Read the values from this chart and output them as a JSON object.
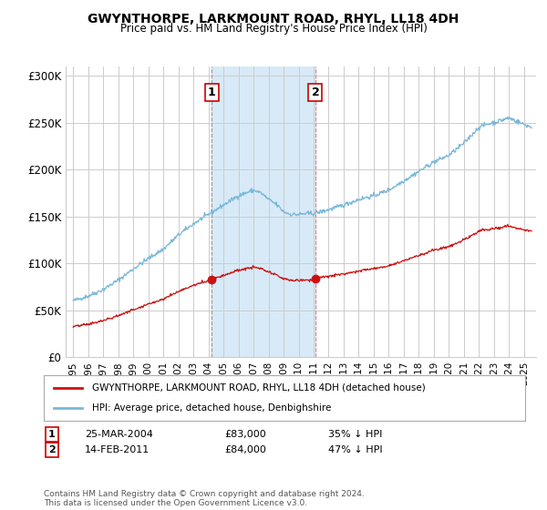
{
  "title": "GWYNTHORPE, LARKMOUNT ROAD, RHYL, LL18 4DH",
  "subtitle": "Price paid vs. HM Land Registry's House Price Index (HPI)",
  "ylabel_ticks": [
    "£0",
    "£50K",
    "£100K",
    "£150K",
    "£200K",
    "£250K",
    "£300K"
  ],
  "ytick_vals": [
    0,
    50000,
    100000,
    150000,
    200000,
    250000,
    300000
  ],
  "ylim": [
    0,
    310000
  ],
  "xlim_start": 1994.5,
  "xlim_end": 2025.8,
  "hpi_color": "#7ab8d8",
  "price_color": "#cc1111",
  "shade_color": "#d8eaf7",
  "background_color": "#ffffff",
  "grid_color": "#cccccc",
  "sale1_x": 2004.23,
  "sale1_y": 83000,
  "sale2_x": 2011.12,
  "sale2_y": 84000,
  "legend_line1": "GWYNTHORPE, LARKMOUNT ROAD, RHYL, LL18 4DH (detached house)",
  "legend_line2": "HPI: Average price, detached house, Denbighshire",
  "annot1_label": "1",
  "annot1_date": "25-MAR-2004",
  "annot1_price": "£83,000",
  "annot1_hpi": "35% ↓ HPI",
  "annot2_label": "2",
  "annot2_date": "14-FEB-2011",
  "annot2_price": "£84,000",
  "annot2_hpi": "47% ↓ HPI",
  "footnote": "Contains HM Land Registry data © Crown copyright and database right 2024.\nThis data is licensed under the Open Government Licence v3.0."
}
